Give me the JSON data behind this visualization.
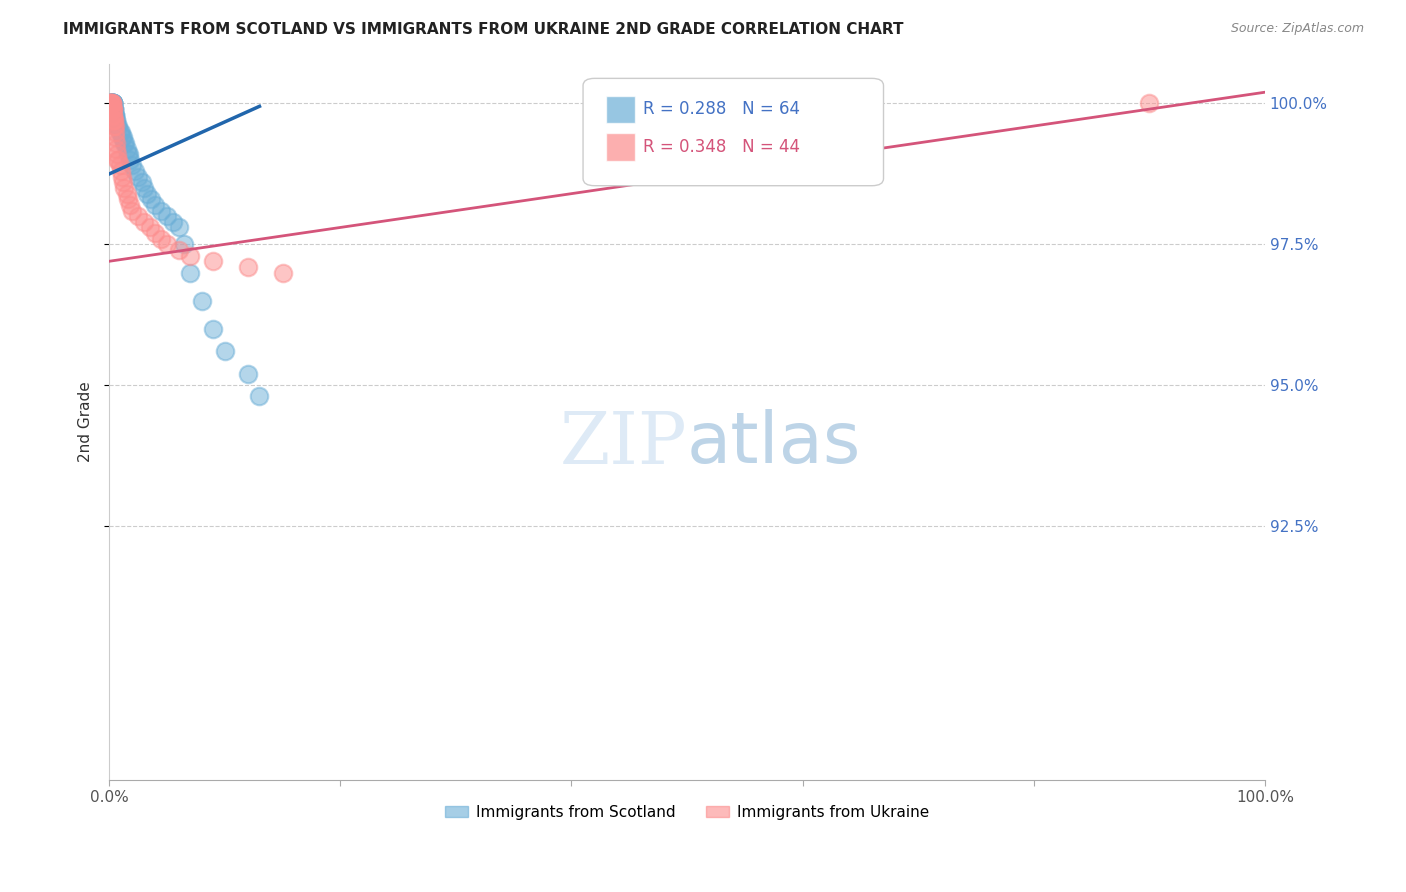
{
  "title": "IMMIGRANTS FROM SCOTLAND VS IMMIGRANTS FROM UKRAINE 2ND GRADE CORRELATION CHART",
  "source": "Source: ZipAtlas.com",
  "ylabel": "2nd Grade",
  "ytick_labels": [
    "100.0%",
    "97.5%",
    "95.0%",
    "92.5%"
  ],
  "ytick_values": [
    1.0,
    0.975,
    0.95,
    0.925
  ],
  "xlim": [
    0.0,
    1.0
  ],
  "ylim": [
    0.88,
    1.007
  ],
  "legend_r_scotland": "R = 0.288",
  "legend_n_scotland": "N = 64",
  "legend_r_ukraine": "R = 0.348",
  "legend_n_ukraine": "N = 44",
  "scotland_color": "#6baed6",
  "ukraine_color": "#fc8d8d",
  "scotland_line_color": "#2166ac",
  "ukraine_line_color": "#d4547a",
  "scotland_x": [
    0.001,
    0.001,
    0.001,
    0.001,
    0.001,
    0.002,
    0.002,
    0.002,
    0.002,
    0.002,
    0.002,
    0.002,
    0.003,
    0.003,
    0.003,
    0.003,
    0.003,
    0.003,
    0.003,
    0.003,
    0.003,
    0.004,
    0.004,
    0.004,
    0.004,
    0.004,
    0.005,
    0.005,
    0.005,
    0.005,
    0.006,
    0.006,
    0.007,
    0.007,
    0.008,
    0.009,
    0.01,
    0.011,
    0.012,
    0.013,
    0.014,
    0.015,
    0.016,
    0.017,
    0.018,
    0.02,
    0.022,
    0.025,
    0.028,
    0.03,
    0.033,
    0.036,
    0.04,
    0.045,
    0.05,
    0.055,
    0.06,
    0.065,
    0.07,
    0.08,
    0.09,
    0.1,
    0.12,
    0.13
  ],
  "scotland_y": [
    1.0,
    1.0,
    1.0,
    1.0,
    1.0,
    1.0,
    1.0,
    1.0,
    1.0,
    1.0,
    1.0,
    1.0,
    1.0,
    1.0,
    1.0,
    1.0,
    1.0,
    1.0,
    1.0,
    1.0,
    0.999,
    0.999,
    0.999,
    0.999,
    0.999,
    0.998,
    0.998,
    0.998,
    0.998,
    0.997,
    0.997,
    0.997,
    0.996,
    0.996,
    0.996,
    0.995,
    0.995,
    0.994,
    0.994,
    0.993,
    0.993,
    0.992,
    0.991,
    0.991,
    0.99,
    0.989,
    0.988,
    0.987,
    0.986,
    0.985,
    0.984,
    0.983,
    0.982,
    0.981,
    0.98,
    0.979,
    0.978,
    0.975,
    0.97,
    0.965,
    0.96,
    0.956,
    0.952,
    0.948
  ],
  "ukraine_x": [
    0.001,
    0.001,
    0.001,
    0.002,
    0.002,
    0.002,
    0.002,
    0.003,
    0.003,
    0.003,
    0.003,
    0.003,
    0.004,
    0.004,
    0.004,
    0.005,
    0.005,
    0.005,
    0.006,
    0.006,
    0.007,
    0.007,
    0.008,
    0.009,
    0.01,
    0.011,
    0.012,
    0.013,
    0.015,
    0.016,
    0.018,
    0.02,
    0.025,
    0.03,
    0.035,
    0.04,
    0.045,
    0.05,
    0.06,
    0.07,
    0.09,
    0.12,
    0.15,
    0.9
  ],
  "ukraine_y": [
    1.0,
    1.0,
    1.0,
    1.0,
    1.0,
    1.0,
    0.999,
    0.999,
    0.999,
    0.998,
    0.998,
    0.997,
    0.997,
    0.997,
    0.996,
    0.996,
    0.995,
    0.994,
    0.993,
    0.992,
    0.991,
    0.99,
    0.99,
    0.989,
    0.988,
    0.987,
    0.986,
    0.985,
    0.984,
    0.983,
    0.982,
    0.981,
    0.98,
    0.979,
    0.978,
    0.977,
    0.976,
    0.975,
    0.974,
    0.973,
    0.972,
    0.971,
    0.97,
    1.0
  ],
  "scotland_trendline_x": [
    0.0,
    0.13
  ],
  "scotland_trendline_y": [
    0.9875,
    0.9995
  ],
  "ukraine_trendline_x": [
    0.0,
    1.0
  ],
  "ukraine_trendline_y": [
    0.972,
    1.002
  ]
}
